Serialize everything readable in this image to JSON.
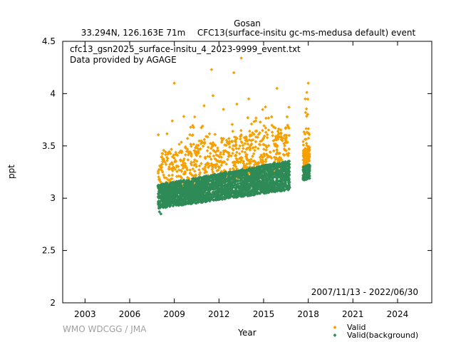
{
  "chart_data": {
    "type": "scatter",
    "title": "Gosan",
    "subtitle_left": "33.294N, 126.163E 71m",
    "subtitle_right": "CFC13(surface-insitu gc-ms-medusa default) event",
    "file_label": "cfc13_gsn2025_surface-insitu_4_2023-9999_event.txt",
    "provider_label": "Data provided by AGAGE",
    "date_range_label": "2007/11/13 - 2022/06/30",
    "credit": "WMO WDCGG / JMA",
    "xlabel": "Year",
    "ylabel": "ppt",
    "xlim": [
      2001.5,
      2026.3
    ],
    "ylim": [
      2,
      4.5
    ],
    "x_ticks": [
      2003,
      2006,
      2009,
      2012,
      2015,
      2018,
      2021,
      2024
    ],
    "y_ticks": [
      2,
      2.5,
      3,
      3.5,
      4,
      4.5
    ],
    "y_tick_labels": [
      "2",
      "2.5",
      "3",
      "3.5",
      "4",
      "4.5"
    ],
    "grid": false,
    "legend_position": "bottom-right",
    "series": [
      {
        "name": "Valid",
        "color": "#f5a000",
        "marker": "diamond",
        "segments": [
          {
            "x_start": 2007.9,
            "x_end": 2016.75,
            "y_low_start": 3.05,
            "y_low_end": 3.25,
            "y_high_start": 3.45,
            "y_high_end": 3.7,
            "count": 700,
            "outlier_count": 50,
            "outlier_max": 4.0
          },
          {
            "x_start": 2017.65,
            "x_end": 2018.1,
            "y_low_start": 3.28,
            "y_low_end": 3.3,
            "y_high_start": 3.45,
            "y_high_end": 3.5,
            "count": 110,
            "outlier_count": 25,
            "outlier_max": 4.1
          }
        ],
        "points": [
          {
            "x": 2009.0,
            "y": 4.1
          },
          {
            "x": 2011.5,
            "y": 4.23
          },
          {
            "x": 2011.6,
            "y": 3.98
          },
          {
            "x": 2013.0,
            "y": 4.2
          },
          {
            "x": 2013.5,
            "y": 4.34
          },
          {
            "x": 2014.0,
            "y": 3.95
          },
          {
            "x": 2015.9,
            "y": 4.05
          },
          {
            "x": 2016.7,
            "y": 3.67
          },
          {
            "x": 2017.8,
            "y": 3.95
          },
          {
            "x": 2018.0,
            "y": 4.1
          },
          {
            "x": 2009.5,
            "y": 3.45
          },
          {
            "x": 2010.2,
            "y": 3.6
          },
          {
            "x": 2012.3,
            "y": 3.85
          },
          {
            "x": 2013.2,
            "y": 3.9
          }
        ]
      },
      {
        "name": "Valid(background)",
        "color": "#2e8b57",
        "marker": "diamond",
        "segments": [
          {
            "x_start": 2007.9,
            "x_end": 2016.75,
            "y_low_start": 2.9,
            "y_low_end": 3.08,
            "y_high_start": 3.13,
            "y_high_end": 3.36,
            "count": 2600
          },
          {
            "x_start": 2017.65,
            "x_end": 2018.1,
            "y_low_start": 3.17,
            "y_low_end": 3.19,
            "y_high_start": 3.3,
            "y_high_end": 3.32,
            "count": 260
          }
        ],
        "points": [
          {
            "x": 2008.0,
            "y": 2.87
          },
          {
            "x": 2008.1,
            "y": 2.85
          }
        ]
      }
    ]
  }
}
